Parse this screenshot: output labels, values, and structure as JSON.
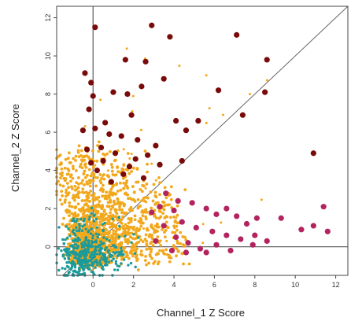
{
  "chart_data": {
    "type": "scatter",
    "xlabel": "Channel_1 Z Score",
    "ylabel": "Channel_2 Z Score",
    "xlim": [
      -1.8,
      12.6
    ],
    "ylim": [
      -1.5,
      12.6
    ],
    "x_ticks": [
      "0",
      "2",
      "4",
      "6",
      "8",
      "10",
      "12"
    ],
    "y_ticks": [
      "0",
      "2",
      "4",
      "6",
      "8",
      "10",
      "12"
    ],
    "x_tick_values": [
      0,
      2,
      4,
      6,
      8,
      10,
      12
    ],
    "y_tick_values": [
      0,
      2,
      4,
      6,
      8,
      10,
      12
    ],
    "grid": false,
    "reference_lines": {
      "vertical_x": 0,
      "horizontal_y": 0,
      "diagonal": "y = x"
    },
    "colors": {
      "channel_2_high": "#7a0a0a",
      "channel_1_high": "#b3245e",
      "both": "#f2a81c",
      "low": "#1a9a9a",
      "reference_line": "#666666",
      "frame": "#444444"
    },
    "series": [
      {
        "color": "#7a0a0a",
        "points": [
          [
            0.1,
            11.5
          ],
          [
            2.9,
            11.6
          ],
          [
            3.8,
            11.0
          ],
          [
            7.1,
            11.1
          ],
          [
            8.6,
            9.8
          ],
          [
            1.6,
            9.8
          ],
          [
            2.6,
            9.7
          ],
          [
            -0.4,
            9.1
          ],
          [
            -0.1,
            8.6
          ],
          [
            3.5,
            8.8
          ],
          [
            0.0,
            7.9
          ],
          [
            1.0,
            8.1
          ],
          [
            1.7,
            8.0
          ],
          [
            2.4,
            8.4
          ],
          [
            6.2,
            8.2
          ],
          [
            -0.2,
            7.2
          ],
          [
            0.6,
            6.5
          ],
          [
            1.9,
            6.9
          ],
          [
            4.1,
            6.6
          ],
          [
            4.6,
            6.1
          ],
          [
            5.2,
            6.6
          ],
          [
            7.4,
            6.9
          ],
          [
            0.1,
            6.2
          ],
          [
            0.8,
            5.9
          ],
          [
            1.4,
            5.8
          ],
          [
            2.2,
            5.6
          ],
          [
            -0.3,
            5.1
          ],
          [
            0.4,
            5.2
          ],
          [
            1.1,
            4.9
          ],
          [
            2.7,
            4.8
          ],
          [
            3.3,
            4.3
          ],
          [
            -0.1,
            4.4
          ],
          [
            0.5,
            4.5
          ],
          [
            1.8,
            4.2
          ],
          [
            10.9,
            4.9
          ],
          [
            4.4,
            4.5
          ],
          [
            0.2,
            4.0
          ],
          [
            1.5,
            3.8
          ],
          [
            2.5,
            3.6
          ],
          [
            0.9,
            3.4
          ],
          [
            8.5,
            8.1
          ],
          [
            3.1,
            5.3
          ],
          [
            -0.5,
            6.1
          ],
          [
            2.1,
            4.6
          ]
        ]
      },
      {
        "color": "#b3245e",
        "points": [
          [
            3.6,
            2.8
          ],
          [
            4.2,
            2.4
          ],
          [
            4.9,
            2.3
          ],
          [
            5.6,
            2.0
          ],
          [
            6.1,
            1.7
          ],
          [
            6.6,
            2.0
          ],
          [
            7.1,
            1.6
          ],
          [
            7.6,
            1.2
          ],
          [
            8.1,
            1.5
          ],
          [
            4.4,
            1.3
          ],
          [
            5.1,
            1.0
          ],
          [
            5.9,
            0.8
          ],
          [
            6.6,
            0.6
          ],
          [
            7.3,
            0.4
          ],
          [
            8.0,
            0.6
          ],
          [
            8.6,
            0.3
          ],
          [
            4.1,
            0.5
          ],
          [
            3.9,
            -0.2
          ],
          [
            4.6,
            -0.3
          ],
          [
            5.3,
            -0.1
          ],
          [
            6.1,
            0.1
          ],
          [
            3.5,
            1.1
          ],
          [
            3.1,
            0.3
          ],
          [
            2.9,
            1.8
          ],
          [
            3.3,
            2.1
          ],
          [
            4.0,
            1.9
          ],
          [
            4.7,
            0.2
          ],
          [
            5.6,
            -0.3
          ],
          [
            10.3,
            0.9
          ],
          [
            10.9,
            1.1
          ],
          [
            11.4,
            2.1
          ],
          [
            11.6,
            0.8
          ],
          [
            9.3,
            1.5
          ],
          [
            7.9,
            0.1
          ],
          [
            6.8,
            -0.2
          ]
        ]
      }
    ]
  }
}
